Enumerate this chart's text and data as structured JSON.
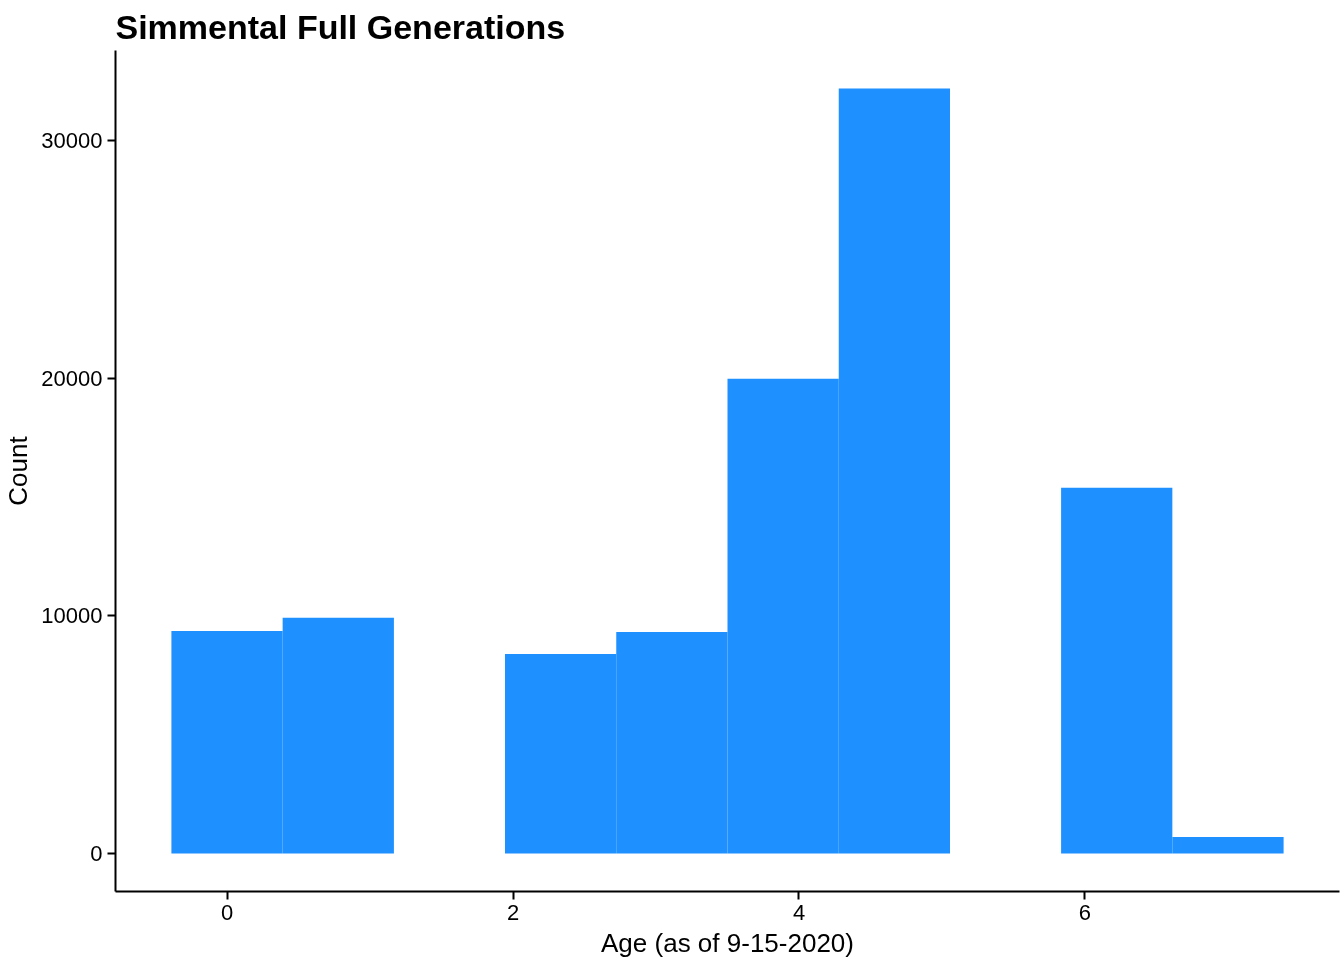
{
  "chart_data": {
    "type": "histogram",
    "title": "Simmental Full Generations",
    "xlabel": "Age (as of 9-15-2020)",
    "ylabel": "Count",
    "bins": [
      -0.389,
      0.389,
      1.167,
      1.944,
      2.722,
      3.5,
      4.278,
      5.056,
      5.833,
      6.611,
      7.389
    ],
    "values": [
      9370,
      9920,
      0,
      8400,
      9320,
      19980,
      32200,
      0,
      15390,
      690
    ],
    "color": "#1e90ff",
    "xlim": [
      -0.78,
      7.78
    ],
    "ylim": [
      -1600,
      33800
    ],
    "xticks": [
      0,
      2,
      4,
      6
    ],
    "yticks": [
      0,
      10000,
      20000,
      30000
    ],
    "grid": false
  }
}
